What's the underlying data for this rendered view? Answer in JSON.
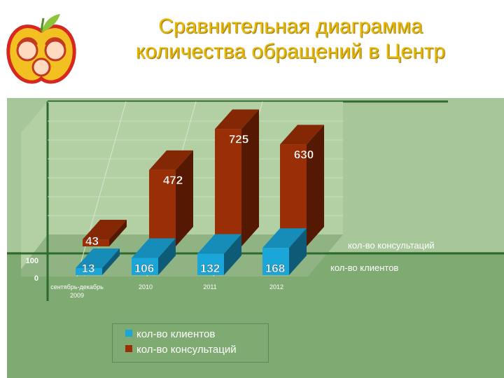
{
  "header": {
    "title_line1": "Сравнительная диаграмма",
    "title_line2": "количества обращений в Центр"
  },
  "logo": {
    "icon": "family-apple-logo-icon"
  },
  "colors": {
    "clients": "#1aa6d8",
    "consultations": "#9a2e06",
    "background_green": "#7faa72",
    "title_yellow": "#e8b800"
  },
  "chart_data": {
    "type": "bar",
    "categories": [
      "сентябрь-декабрь 2009",
      "2010",
      "2011",
      "2012"
    ],
    "category_lines": [
      [
        "сентябрь-декабрь",
        "2009"
      ],
      [
        "2010"
      ],
      [
        "2011"
      ],
      [
        "2012"
      ]
    ],
    "series": [
      {
        "name": "кол-во клиентов",
        "values": [
          13,
          106,
          132,
          168
        ]
      },
      {
        "name": "кол-во консультаций",
        "values": [
          43,
          472,
          725,
          630
        ]
      }
    ],
    "data_labels": {
      "clients": [
        "13",
        "106",
        "132",
        "168"
      ],
      "consultations": [
        "43",
        "472",
        "725",
        "630"
      ]
    },
    "y_tick_labels": [
      "0",
      "100"
    ],
    "ylim": [
      0,
      800
    ],
    "grid": true,
    "legend": "bottom",
    "projection": "3d",
    "depth_labels": [
      "кол-во клиентов",
      "кол-во консультаций"
    ]
  }
}
